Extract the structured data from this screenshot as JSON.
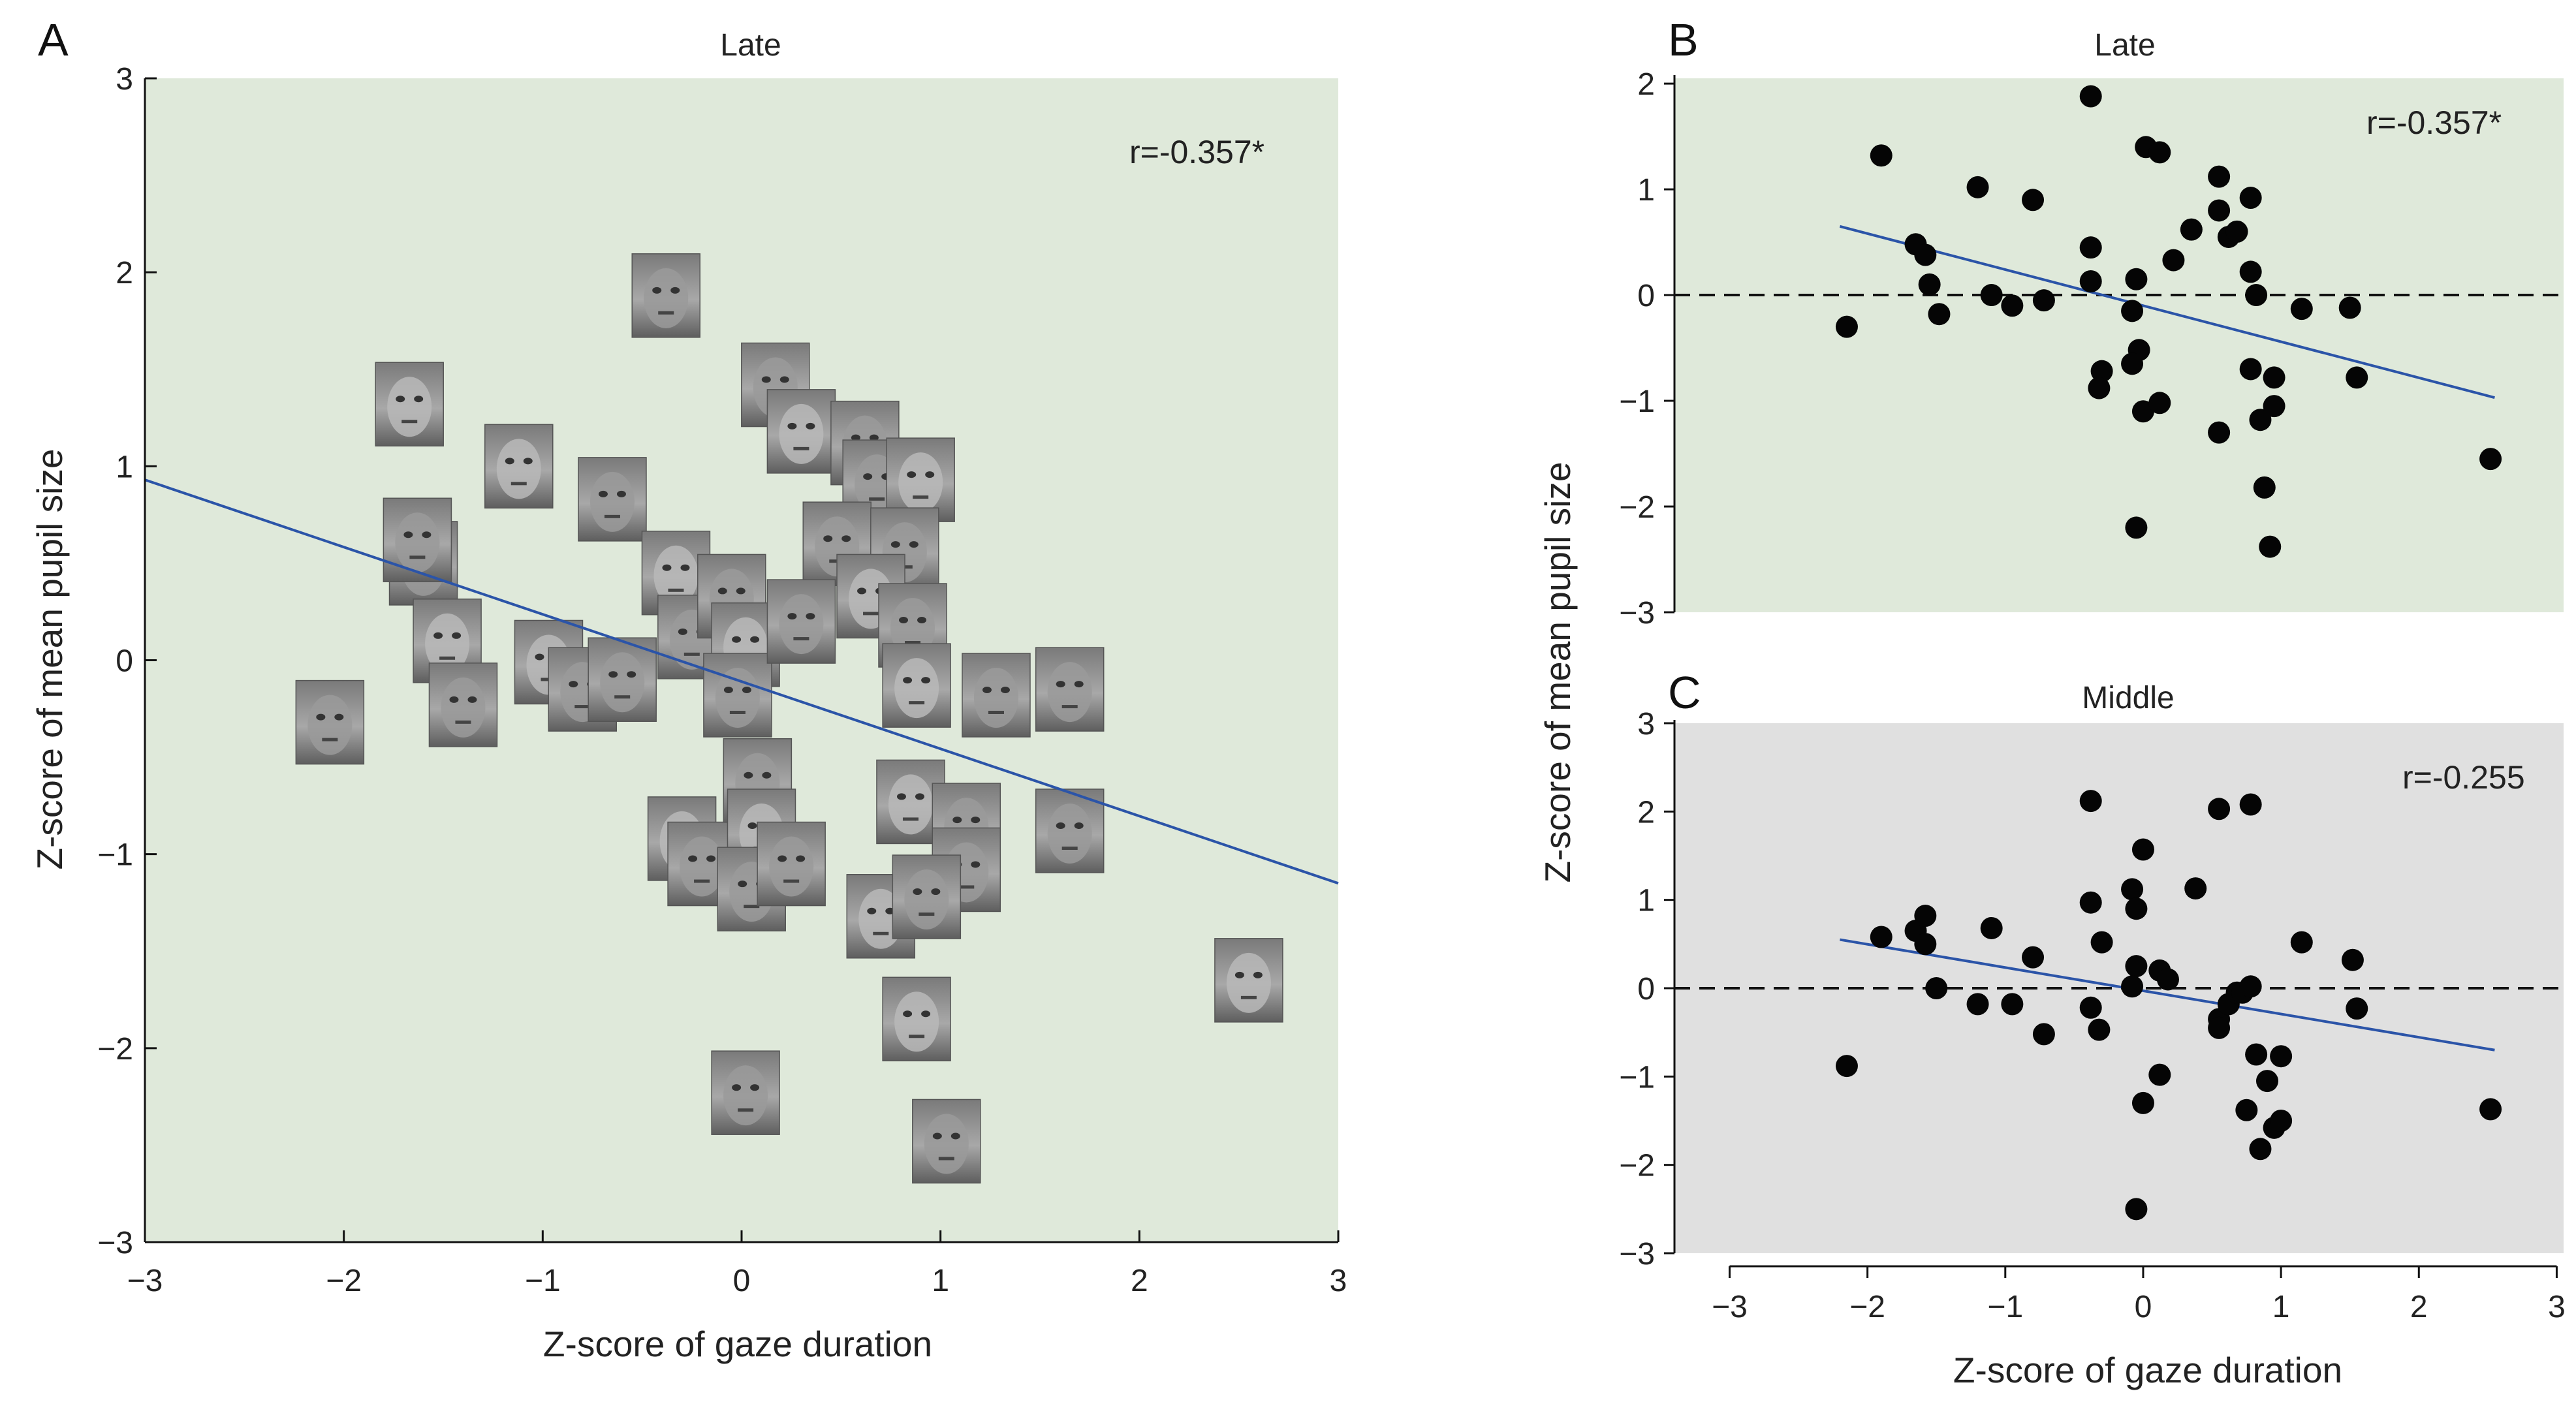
{
  "figure": {
    "ylabel_shared": "Z-score of mean pupil size",
    "xlabel_shared": "Z-score of gaze duration"
  },
  "chart_data": [
    {
      "panel": "A",
      "type": "scatter",
      "title": "Late",
      "annotation": "r=-0.357*",
      "background": "#dfe9da",
      "xlabel": "Z-score of gaze duration",
      "ylabel": "Z-score of mean pupil size",
      "xlim": [
        -3,
        3
      ],
      "ylim": [
        -3,
        3
      ],
      "xticks": [
        -3,
        -2,
        -1,
        0,
        1,
        2,
        3
      ],
      "yticks": [
        -3,
        -2,
        -1,
        0,
        1,
        2,
        3
      ],
      "xtick_labels": [
        "−3",
        "−2",
        "−1",
        "0",
        "1",
        "2",
        "3"
      ],
      "ytick_labels": [
        "−3",
        "−2",
        "−1",
        "0",
        "1",
        "2",
        "3"
      ],
      "marker": "face-image",
      "trend_line": {
        "x": [
          -3,
          3
        ],
        "y": [
          0.93,
          -1.15
        ],
        "color": "#2b54a8"
      },
      "points": [
        {
          "x": -1.67,
          "y": 1.32
        },
        {
          "x": -1.6,
          "y": 0.5
        },
        {
          "x": -1.63,
          "y": 0.62
        },
        {
          "x": -1.48,
          "y": 0.1
        },
        {
          "x": -1.4,
          "y": -0.23
        },
        {
          "x": -2.07,
          "y": -0.32
        },
        {
          "x": -1.12,
          "y": 1.0
        },
        {
          "x": -0.65,
          "y": 0.83
        },
        {
          "x": -0.38,
          "y": 1.88
        },
        {
          "x": -0.97,
          "y": -0.01
        },
        {
          "x": -0.8,
          "y": -0.15
        },
        {
          "x": -0.6,
          "y": -0.1
        },
        {
          "x": -0.33,
          "y": 0.45
        },
        {
          "x": -0.25,
          "y": 0.12
        },
        {
          "x": -0.05,
          "y": 0.33
        },
        {
          "x": 0.02,
          "y": 0.08
        },
        {
          "x": -0.02,
          "y": -0.18
        },
        {
          "x": 0.17,
          "y": 1.42
        },
        {
          "x": 0.3,
          "y": 1.18
        },
        {
          "x": 0.62,
          "y": 1.12
        },
        {
          "x": 0.68,
          "y": 0.92
        },
        {
          "x": 0.9,
          "y": 0.93
        },
        {
          "x": 0.48,
          "y": 0.6
        },
        {
          "x": 0.82,
          "y": 0.57
        },
        {
          "x": 0.65,
          "y": 0.33
        },
        {
          "x": 0.86,
          "y": 0.18
        },
        {
          "x": 0.3,
          "y": 0.2
        },
        {
          "x": 0.88,
          "y": -0.13
        },
        {
          "x": 1.28,
          "y": -0.18
        },
        {
          "x": 1.65,
          "y": -0.15
        },
        {
          "x": -0.3,
          "y": -0.92
        },
        {
          "x": -0.2,
          "y": -1.05
        },
        {
          "x": 0.08,
          "y": -0.62
        },
        {
          "x": 0.1,
          "y": -0.88
        },
        {
          "x": 0.05,
          "y": -1.18
        },
        {
          "x": 0.25,
          "y": -1.05
        },
        {
          "x": 0.85,
          "y": -0.73
        },
        {
          "x": 1.13,
          "y": -0.85
        },
        {
          "x": 1.13,
          "y": -1.08
        },
        {
          "x": 0.7,
          "y": -1.32
        },
        {
          "x": 0.93,
          "y": -1.22
        },
        {
          "x": 1.65,
          "y": -0.88
        },
        {
          "x": 0.88,
          "y": -1.85
        },
        {
          "x": 0.02,
          "y": -2.23
        },
        {
          "x": 1.03,
          "y": -2.48
        },
        {
          "x": 2.55,
          "y": -1.65
        }
      ]
    },
    {
      "panel": "B",
      "type": "scatter",
      "title": "Late",
      "annotation": "r=-0.357*",
      "background": "#dfe9da",
      "xlabel": "",
      "ylabel": "Z-score of mean pupil size",
      "xlim": [
        -3.4,
        3.05
      ],
      "ylim": [
        -3,
        2.05
      ],
      "xticks": [],
      "yticks": [
        -3,
        -2,
        -1,
        0,
        1,
        2
      ],
      "ytick_labels": [
        "−3",
        "−2",
        "−1",
        "0",
        "1",
        "2"
      ],
      "marker": "filled-circle",
      "zero_line": true,
      "trend_line": {
        "x": [
          -2.2,
          2.55
        ],
        "y": [
          0.65,
          -0.97
        ],
        "color": "#2b54a8"
      },
      "points": [
        {
          "x": -2.15,
          "y": -0.3
        },
        {
          "x": -1.9,
          "y": 1.32
        },
        {
          "x": -1.65,
          "y": 0.48
        },
        {
          "x": -1.58,
          "y": 0.38
        },
        {
          "x": -1.55,
          "y": 0.1
        },
        {
          "x": -1.48,
          "y": -0.18
        },
        {
          "x": -1.2,
          "y": 1.02
        },
        {
          "x": -1.1,
          "y": 0.0
        },
        {
          "x": -0.95,
          "y": -0.1
        },
        {
          "x": -0.8,
          "y": 0.9
        },
        {
          "x": -0.72,
          "y": -0.05
        },
        {
          "x": -0.38,
          "y": 1.88
        },
        {
          "x": -0.38,
          "y": 0.45
        },
        {
          "x": -0.38,
          "y": 0.13
        },
        {
          "x": -0.3,
          "y": -0.72
        },
        {
          "x": -0.32,
          "y": -0.88
        },
        {
          "x": -0.08,
          "y": -0.15
        },
        {
          "x": -0.05,
          "y": 0.15
        },
        {
          "x": -0.03,
          "y": -0.52
        },
        {
          "x": -0.08,
          "y": -0.65
        },
        {
          "x": 0.02,
          "y": 1.4
        },
        {
          "x": 0.12,
          "y": 1.35
        },
        {
          "x": 0.22,
          "y": 0.33
        },
        {
          "x": 0.0,
          "y": -1.1
        },
        {
          "x": 0.12,
          "y": -1.02
        },
        {
          "x": -0.05,
          "y": -2.2
        },
        {
          "x": 0.35,
          "y": 0.62
        },
        {
          "x": 0.55,
          "y": 1.12
        },
        {
          "x": 0.55,
          "y": 0.8
        },
        {
          "x": 0.62,
          "y": 0.55
        },
        {
          "x": 0.68,
          "y": 0.6
        },
        {
          "x": 0.78,
          "y": 0.92
        },
        {
          "x": 0.78,
          "y": 0.22
        },
        {
          "x": 0.82,
          "y": 0.0
        },
        {
          "x": 0.55,
          "y": -1.3
        },
        {
          "x": 0.78,
          "y": -0.7
        },
        {
          "x": 0.85,
          "y": -1.18
        },
        {
          "x": 0.95,
          "y": -0.78
        },
        {
          "x": 0.95,
          "y": -1.05
        },
        {
          "x": 0.88,
          "y": -1.82
        },
        {
          "x": 0.92,
          "y": -2.38
        },
        {
          "x": 1.15,
          "y": -0.13
        },
        {
          "x": 1.5,
          "y": -0.12
        },
        {
          "x": 1.55,
          "y": -0.78
        },
        {
          "x": 2.52,
          "y": -1.55
        }
      ]
    },
    {
      "panel": "C",
      "type": "scatter",
      "title": "Middle",
      "annotation": "r=-0.255",
      "background": "#e0e0e0",
      "xlabel": "Z-score of gaze duration",
      "ylabel": "Z-score of mean pupil size",
      "xlim": [
        -3.4,
        3.05
      ],
      "ylim": [
        -3,
        3
      ],
      "xticks": [
        -3,
        -2,
        -1,
        0,
        1,
        2,
        3
      ],
      "yticks": [
        -3,
        -2,
        -1,
        0,
        1,
        2,
        3
      ],
      "xtick_labels": [
        "−3",
        "−2",
        "−1",
        "0",
        "1",
        "2",
        "3"
      ],
      "ytick_labels": [
        "−3",
        "−2",
        "−1",
        "0",
        "1",
        "2",
        "3"
      ],
      "marker": "filled-circle",
      "zero_line": true,
      "trend_line": {
        "x": [
          -2.2,
          2.55
        ],
        "y": [
          0.55,
          -0.7
        ],
        "color": "#2b54a8"
      },
      "points": [
        {
          "x": -2.15,
          "y": -0.88
        },
        {
          "x": -1.9,
          "y": 0.58
        },
        {
          "x": -1.65,
          "y": 0.65
        },
        {
          "x": -1.58,
          "y": 0.82
        },
        {
          "x": -1.58,
          "y": 0.5
        },
        {
          "x": -1.5,
          "y": 0.0
        },
        {
          "x": -1.2,
          "y": -0.18
        },
        {
          "x": -1.1,
          "y": 0.68
        },
        {
          "x": -0.95,
          "y": -0.18
        },
        {
          "x": -0.8,
          "y": 0.35
        },
        {
          "x": -0.72,
          "y": -0.52
        },
        {
          "x": -0.38,
          "y": 2.12
        },
        {
          "x": -0.38,
          "y": 0.97
        },
        {
          "x": -0.3,
          "y": 0.52
        },
        {
          "x": -0.38,
          "y": -0.22
        },
        {
          "x": -0.32,
          "y": -0.47
        },
        {
          "x": -0.08,
          "y": 1.12
        },
        {
          "x": -0.05,
          "y": 0.9
        },
        {
          "x": -0.05,
          "y": 0.25
        },
        {
          "x": -0.08,
          "y": 0.02
        },
        {
          "x": 0.0,
          "y": 1.57
        },
        {
          "x": 0.12,
          "y": 0.2
        },
        {
          "x": 0.18,
          "y": 0.1
        },
        {
          "x": 0.0,
          "y": -1.3
        },
        {
          "x": 0.12,
          "y": -0.98
        },
        {
          "x": -0.05,
          "y": -2.5
        },
        {
          "x": 0.38,
          "y": 1.13
        },
        {
          "x": 0.55,
          "y": 2.03
        },
        {
          "x": 0.78,
          "y": 2.08
        },
        {
          "x": 0.55,
          "y": -0.35
        },
        {
          "x": 0.55,
          "y": -0.45
        },
        {
          "x": 0.62,
          "y": -0.18
        },
        {
          "x": 0.68,
          "y": -0.05
        },
        {
          "x": 0.72,
          "y": -0.05
        },
        {
          "x": 0.78,
          "y": 0.02
        },
        {
          "x": 0.75,
          "y": -1.38
        },
        {
          "x": 0.82,
          "y": -0.75
        },
        {
          "x": 0.85,
          "y": -1.82
        },
        {
          "x": 0.9,
          "y": -1.05
        },
        {
          "x": 0.95,
          "y": -1.58
        },
        {
          "x": 1.0,
          "y": -1.5
        },
        {
          "x": 1.0,
          "y": -0.77
        },
        {
          "x": 1.15,
          "y": 0.52
        },
        {
          "x": 1.52,
          "y": 0.32
        },
        {
          "x": 1.55,
          "y": -0.23
        },
        {
          "x": 2.52,
          "y": -1.37
        }
      ]
    }
  ]
}
